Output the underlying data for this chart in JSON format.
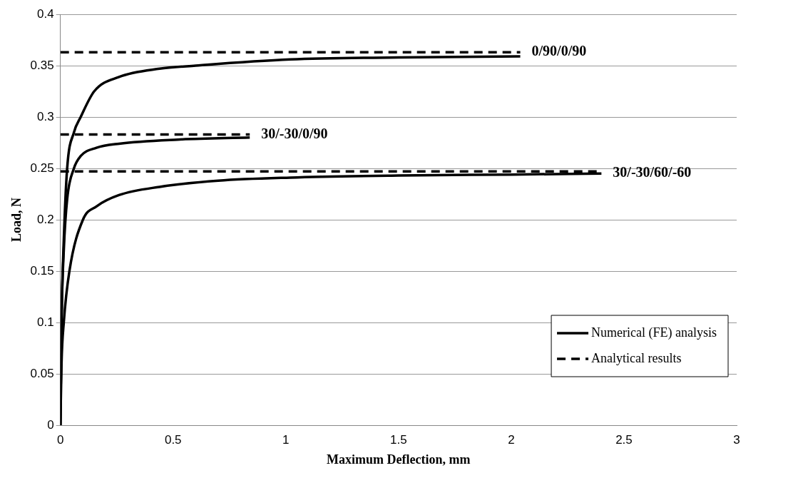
{
  "chart_data": {
    "type": "line",
    "xlabel": "Maximum Deflection, mm",
    "ylabel": "Load, N",
    "xlim": [
      0,
      3
    ],
    "xticks": [
      0,
      0.5,
      1,
      1.5,
      2,
      2.5,
      3
    ],
    "ylim": [
      0,
      0.4
    ],
    "yticks": [
      0,
      0.05,
      0.1,
      0.15,
      0.2,
      0.25,
      0.3,
      0.35,
      0.4
    ],
    "grid": "y",
    "legend": "bottom right",
    "marker": "none",
    "series": [
      {
        "name": "Numerical (FE) analysis",
        "color": "#000000",
        "line_style": "solid",
        "x": [
          0,
          0.005,
          0.015,
          0.03,
          0.06,
          0.09,
          0.15,
          0.26,
          0.44,
          0.6,
          1.02,
          1.5,
          2.04
        ],
        "values": [
          0,
          0.1,
          0.18,
          0.25,
          0.285,
          0.3,
          0.325,
          0.339,
          0.347,
          0.35,
          0.356,
          0.358,
          0.359
        ]
      },
      {
        "color": "#000000",
        "line_style": "solid",
        "x": [
          0,
          0.005,
          0.015,
          0.03,
          0.06,
          0.09,
          0.16,
          0.26,
          0.52,
          0.84
        ],
        "values": [
          0,
          0.1,
          0.17,
          0.22,
          0.25,
          0.262,
          0.27,
          0.274,
          0.278,
          0.28
        ]
      },
      {
        "color": "#000000",
        "line_style": "solid",
        "x": [
          0,
          0.005,
          0.015,
          0.04,
          0.1,
          0.16,
          0.26,
          0.44,
          0.7,
          1.02,
          1.5,
          2.0,
          2.4
        ],
        "values": [
          0,
          0.06,
          0.1,
          0.15,
          0.2,
          0.213,
          0.224,
          0.232,
          0.238,
          0.241,
          0.243,
          0.244,
          0.245
        ]
      },
      {
        "name": "Analytical results",
        "color": "#000000",
        "line_style": "dashed",
        "x": [
          0,
          2.04
        ],
        "values": [
          0.363,
          0.363
        ]
      },
      {
        "color": "#000000",
        "line_style": "dashed",
        "x": [
          0,
          0.84
        ],
        "values": [
          0.283,
          0.283
        ]
      },
      {
        "color": "#000000",
        "line_style": "dashed",
        "x": [
          0,
          2.4
        ],
        "values": [
          0.247,
          0.247
        ]
      }
    ],
    "annotations": [
      {
        "text": "0/90/0/90",
        "x": 2.04,
        "y": 0.363
      },
      {
        "text": "30/-30/0/90",
        "x": 0.84,
        "y": 0.283
      },
      {
        "text": "30/-30/60/-60",
        "x": 2.4,
        "y": 0.245
      }
    ]
  }
}
